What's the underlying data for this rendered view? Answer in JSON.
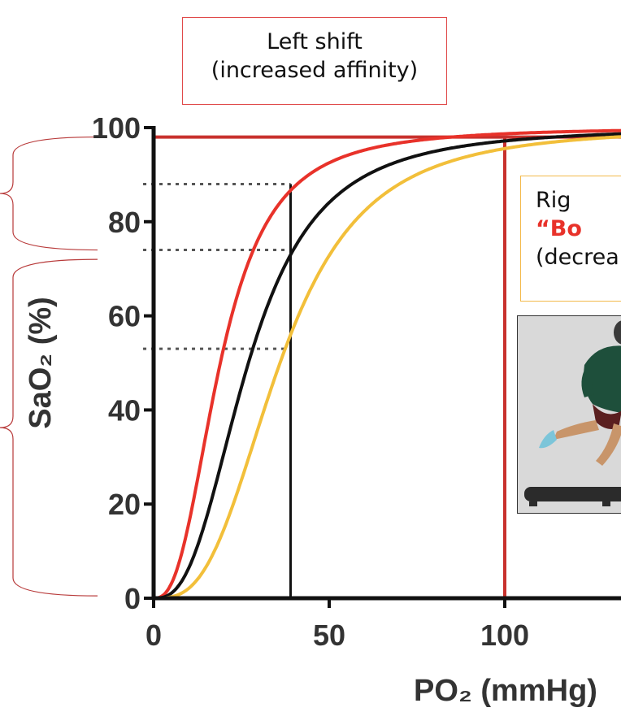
{
  "chart_data": {
    "type": "line",
    "xlabel": "PO₂ (mmHg)",
    "ylabel": "SaO₂ (%)",
    "xlim": [
      0,
      135
    ],
    "ylim": [
      0,
      100
    ],
    "xticks": [
      0,
      50,
      100
    ],
    "yticks": [
      0,
      20,
      40,
      60,
      80,
      100
    ],
    "grid": false,
    "series": [
      {
        "color": "#e8322a",
        "p50": 19,
        "n": 2.6
      },
      {
        "color": "#111111",
        "p50": 27,
        "n": 2.7
      },
      {
        "color": "#f2bf3a",
        "p50": 36,
        "n": 3.0
      }
    ],
    "reference_lines": {
      "vertical": [
        {
          "x": 39,
          "y_top": 88,
          "color": "#111111"
        },
        {
          "x": 100,
          "y_top": 98,
          "color": "#c8312d"
        }
      ],
      "horizontal": [
        {
          "y": 98,
          "color": "#c8312d"
        }
      ],
      "dotted": [
        {
          "y": 88,
          "x_from": -3,
          "x_to": 39
        },
        {
          "y": 74,
          "x_from": -3,
          "x_to": 39
        },
        {
          "y": 53,
          "x_from": -3,
          "x_to": 39
        }
      ]
    }
  },
  "annotations": {
    "left_shift": {
      "line1": "Left shift",
      "line2": "(increased affinity)",
      "border_color": "#e04a4a"
    },
    "right_shift": {
      "line1": "Rig",
      "line2": "“Bo",
      "line3": "(decrea",
      "border_color": "#f3b94a",
      "highlight_color": "#e8322a"
    }
  },
  "colors": {
    "axis": "#111111",
    "brace": "#b83a3a",
    "dotted": "#555555",
    "runner_shirt": "#1e4f3b",
    "runner_shorts": "#5a1f1f",
    "runner_shoe": "#7cc5d9",
    "runner_skin": "#c8956a"
  }
}
